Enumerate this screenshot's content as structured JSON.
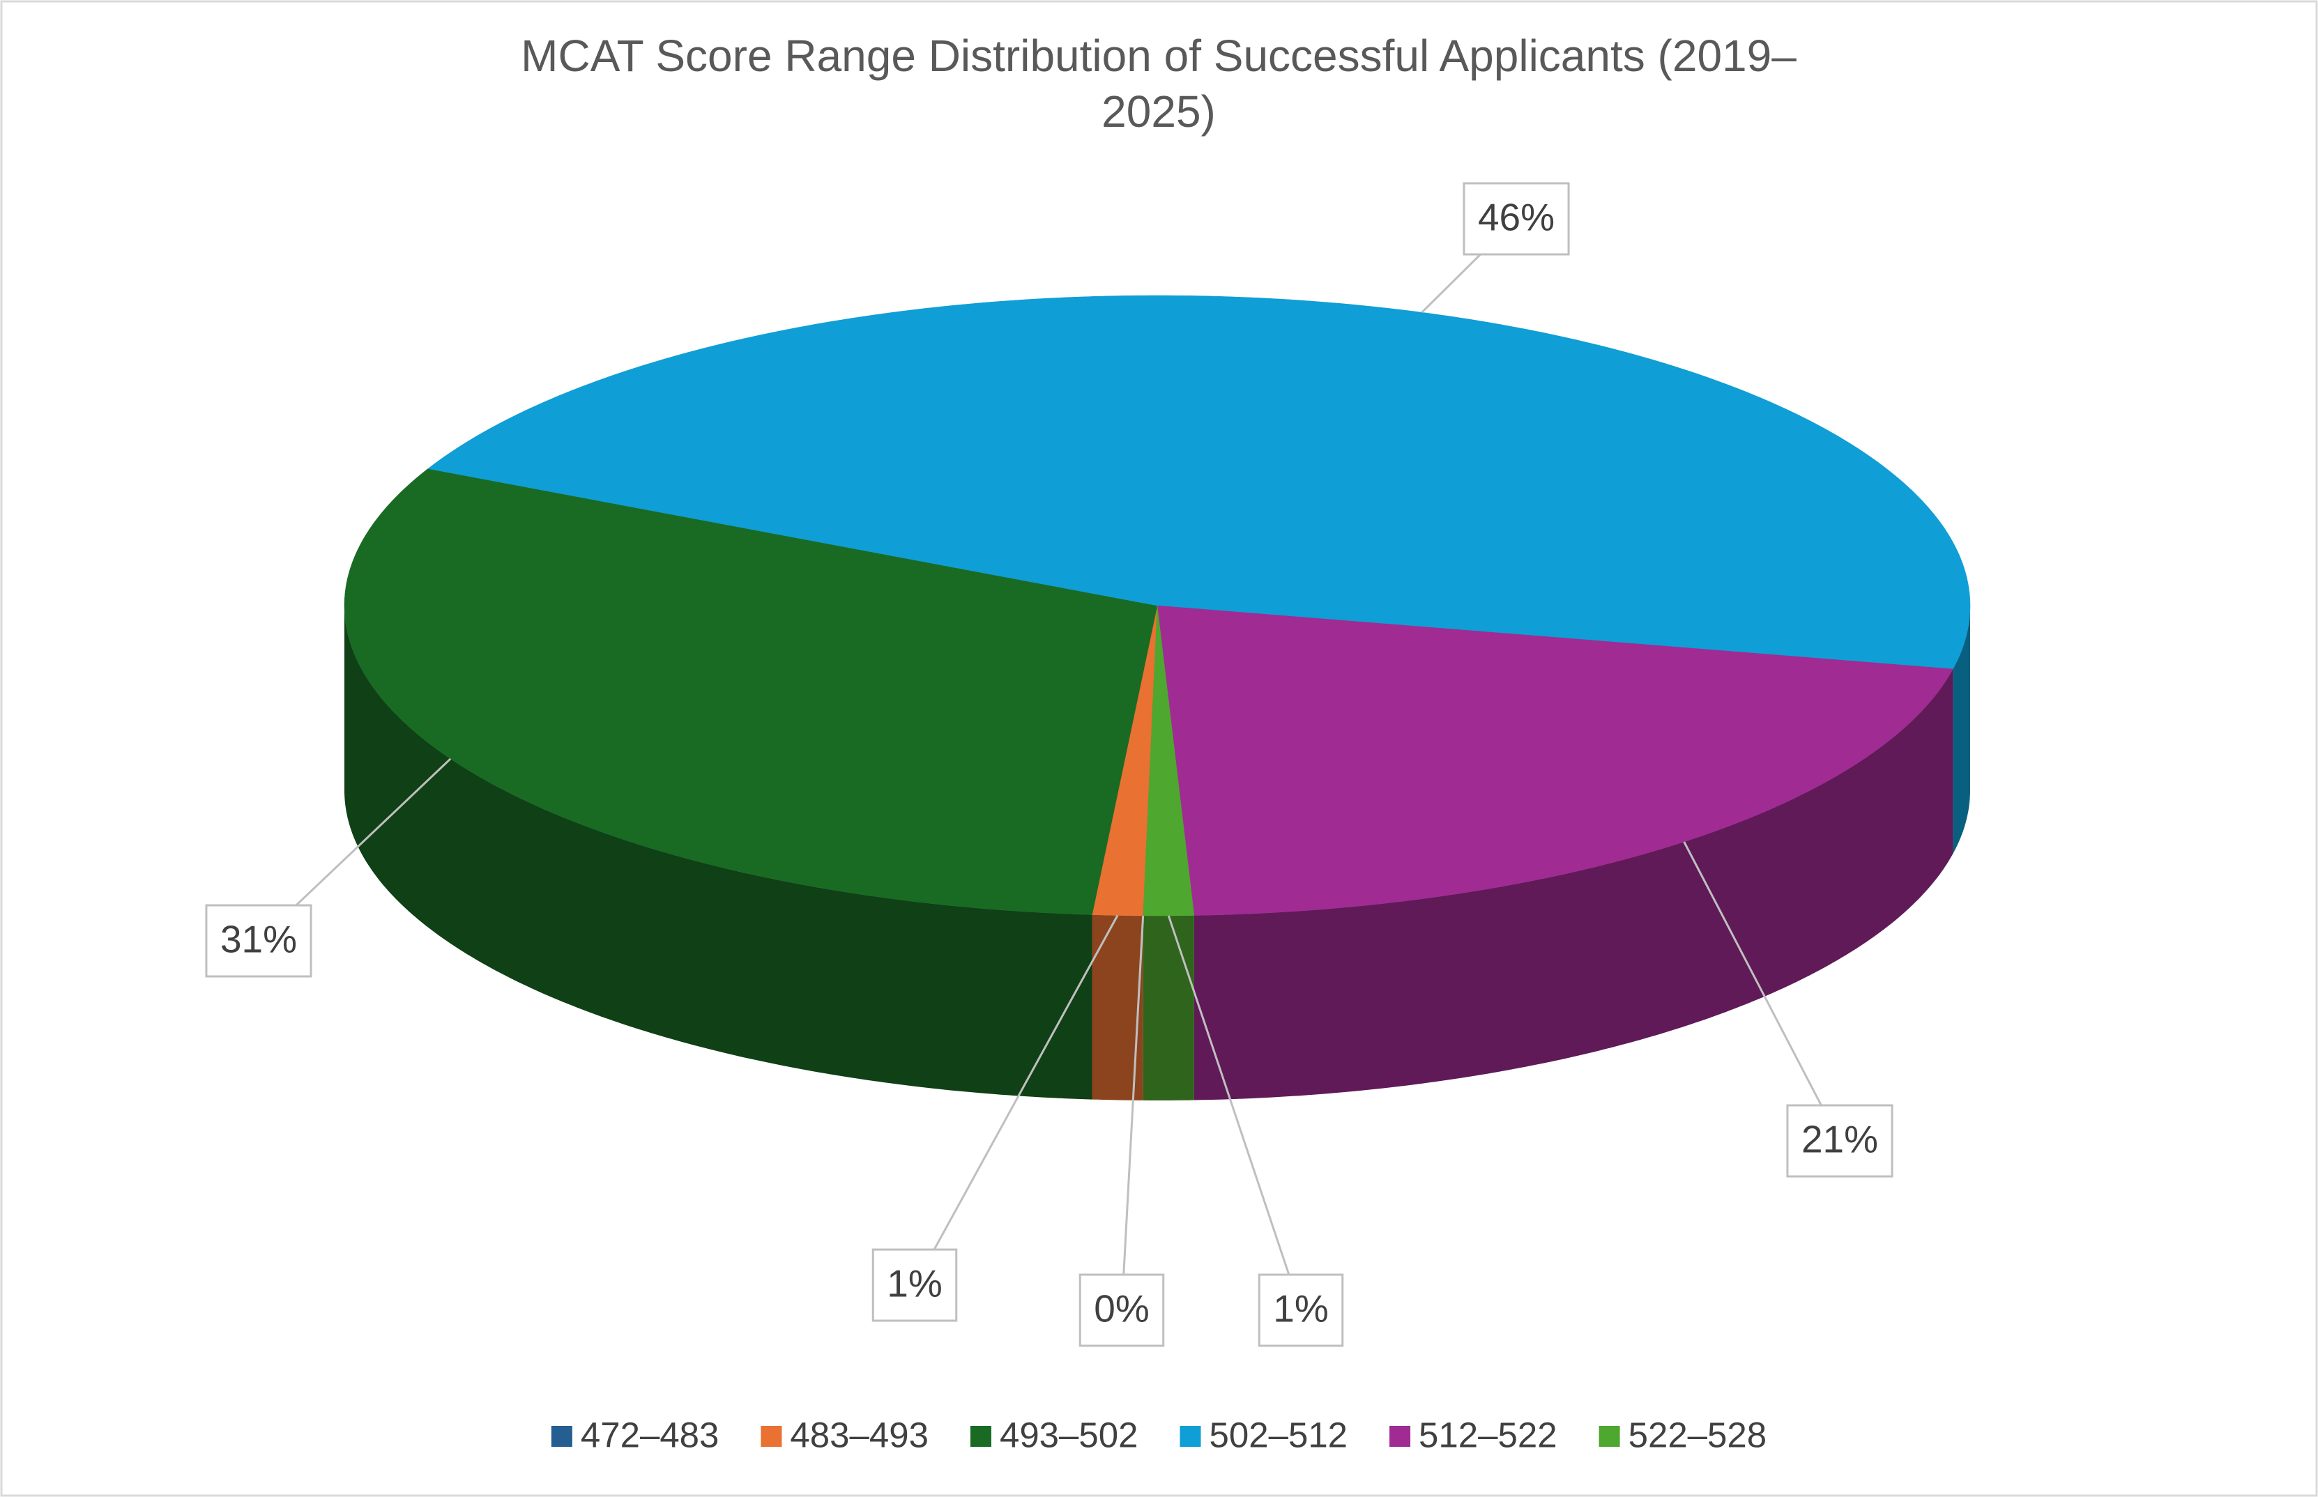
{
  "chart_data": {
    "type": "pie3d",
    "title": "MCAT Score Range Distribution of Successful Applicants (2019–2025)",
    "categories": [
      "472–483",
      "483–493",
      "493–502",
      "502–512",
      "512–522",
      "522–528"
    ],
    "values": [
      0,
      1,
      31,
      46,
      21,
      1
    ],
    "value_labels": [
      "0%",
      "1%",
      "31%",
      "46%",
      "21%",
      "1%"
    ],
    "colors": [
      "#255e91",
      "#e97132",
      "#196b24",
      "#0f9ed5",
      "#a02b93",
      "#4ea72e"
    ],
    "legend": "bottom"
  }
}
